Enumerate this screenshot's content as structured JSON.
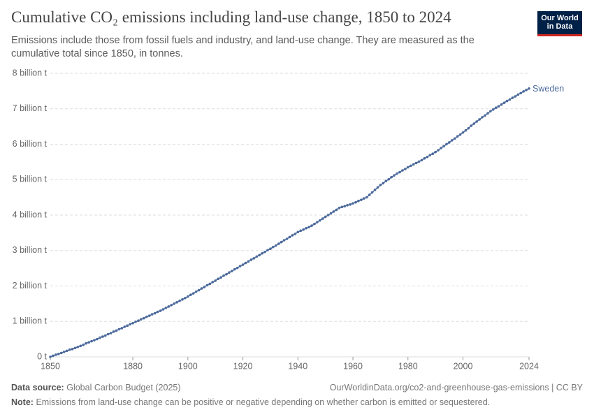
{
  "header": {
    "title": "Cumulative CO₂ emissions including land-use change, 1850 to 2024",
    "subtitle": "Emissions include those from fossil fuels and industry, and land-use change. They are measured as the cumulative total since 1850, in tonnes.",
    "logo": [
      "Our World",
      "in Data"
    ]
  },
  "chart_data": {
    "type": "line",
    "x": [
      1850,
      1851,
      1852,
      1853,
      1854,
      1855,
      1856,
      1857,
      1858,
      1859,
      1860,
      1861,
      1862,
      1863,
      1864,
      1865,
      1866,
      1867,
      1868,
      1869,
      1870,
      1871,
      1872,
      1873,
      1874,
      1875,
      1876,
      1877,
      1878,
      1879,
      1880,
      1881,
      1882,
      1883,
      1884,
      1885,
      1886,
      1887,
      1888,
      1889,
      1890,
      1891,
      1892,
      1893,
      1894,
      1895,
      1896,
      1897,
      1898,
      1899,
      1900,
      1901,
      1902,
      1903,
      1904,
      1905,
      1906,
      1907,
      1908,
      1909,
      1910,
      1911,
      1912,
      1913,
      1914,
      1915,
      1916,
      1917,
      1918,
      1919,
      1920,
      1921,
      1922,
      1923,
      1924,
      1925,
      1926,
      1927,
      1928,
      1929,
      1930,
      1931,
      1932,
      1933,
      1934,
      1935,
      1936,
      1937,
      1938,
      1939,
      1940,
      1941,
      1942,
      1943,
      1944,
      1945,
      1946,
      1947,
      1948,
      1949,
      1950,
      1951,
      1952,
      1953,
      1954,
      1955,
      1956,
      1957,
      1958,
      1959,
      1960,
      1961,
      1962,
      1963,
      1964,
      1965,
      1966,
      1967,
      1968,
      1969,
      1970,
      1971,
      1972,
      1973,
      1974,
      1975,
      1976,
      1977,
      1978,
      1979,
      1980,
      1981,
      1982,
      1983,
      1984,
      1985,
      1986,
      1987,
      1988,
      1989,
      1990,
      1991,
      1992,
      1993,
      1994,
      1995,
      1996,
      1997,
      1998,
      1999,
      2000,
      2001,
      2002,
      2003,
      2004,
      2005,
      2006,
      2007,
      2008,
      2009,
      2010,
      2011,
      2012,
      2013,
      2014,
      2015,
      2016,
      2017,
      2018,
      2019,
      2020,
      2021,
      2022,
      2023,
      2024
    ],
    "series": [
      {
        "name": "Sweden",
        "color": "#4c6a9c",
        "values": [
          0.0,
          0.03,
          0.06,
          0.08,
          0.11,
          0.14,
          0.17,
          0.2,
          0.22,
          0.25,
          0.28,
          0.31,
          0.34,
          0.38,
          0.41,
          0.44,
          0.47,
          0.5,
          0.54,
          0.57,
          0.6,
          0.64,
          0.67,
          0.71,
          0.74,
          0.78,
          0.81,
          0.85,
          0.88,
          0.92,
          0.95,
          0.99,
          1.02,
          1.06,
          1.09,
          1.13,
          1.16,
          1.2,
          1.23,
          1.27,
          1.3,
          1.34,
          1.38,
          1.42,
          1.46,
          1.5,
          1.54,
          1.58,
          1.62,
          1.66,
          1.7,
          1.75,
          1.79,
          1.84,
          1.88,
          1.93,
          1.97,
          2.02,
          2.06,
          2.11,
          2.15,
          2.2,
          2.24,
          2.29,
          2.33,
          2.38,
          2.42,
          2.47,
          2.51,
          2.56,
          2.6,
          2.65,
          2.69,
          2.74,
          2.78,
          2.83,
          2.87,
          2.92,
          2.96,
          3.01,
          3.05,
          3.1,
          3.14,
          3.19,
          3.24,
          3.29,
          3.33,
          3.38,
          3.43,
          3.47,
          3.52,
          3.56,
          3.59,
          3.63,
          3.66,
          3.7,
          3.75,
          3.8,
          3.85,
          3.9,
          3.95,
          4.0,
          4.05,
          4.1,
          4.15,
          4.2,
          4.23,
          4.25,
          4.28,
          4.3,
          4.33,
          4.36,
          4.4,
          4.43,
          4.47,
          4.5,
          4.57,
          4.64,
          4.71,
          4.78,
          4.85,
          4.9,
          4.96,
          5.01,
          5.07,
          5.12,
          5.17,
          5.21,
          5.26,
          5.3,
          5.35,
          5.39,
          5.43,
          5.47,
          5.51,
          5.55,
          5.6,
          5.64,
          5.69,
          5.73,
          5.78,
          5.83,
          5.89,
          5.94,
          6.0,
          6.05,
          6.11,
          6.16,
          6.22,
          6.27,
          6.33,
          6.39,
          6.45,
          6.52,
          6.58,
          6.64,
          6.7,
          6.76,
          6.81,
          6.87,
          6.93,
          6.98,
          7.03,
          7.07,
          7.12,
          7.17,
          7.22,
          7.26,
          7.31,
          7.35,
          7.4,
          7.44,
          7.49,
          7.53,
          7.57
        ]
      }
    ],
    "xlim": [
      1850,
      2024
    ],
    "xticks": [
      1850,
      1880,
      1900,
      1920,
      1940,
      1960,
      1980,
      2000,
      2024
    ],
    "ylim": [
      0,
      8
    ],
    "yticks": [
      {
        "value": 0,
        "label": "0 t"
      },
      {
        "value": 1,
        "label": "1 billion t"
      },
      {
        "value": 2,
        "label": "2 billion t"
      },
      {
        "value": 3,
        "label": "3 billion t"
      },
      {
        "value": 4,
        "label": "4 billion t"
      },
      {
        "value": 5,
        "label": "5 billion t"
      },
      {
        "value": 6,
        "label": "6 billion t"
      },
      {
        "value": 7,
        "label": "7 billion t"
      },
      {
        "value": 8,
        "label": "8 billion t"
      }
    ],
    "grid": true
  },
  "footer": {
    "source_label": "Data source:",
    "source": "Global Carbon Budget (2025)",
    "url": "OurWorldinData.org/co2-and-greenhouse-gas-emissions | CC BY",
    "note_label": "Note:",
    "note": "Emissions from land-use change can be positive or negative depending on whether carbon is emitted or sequestered."
  }
}
